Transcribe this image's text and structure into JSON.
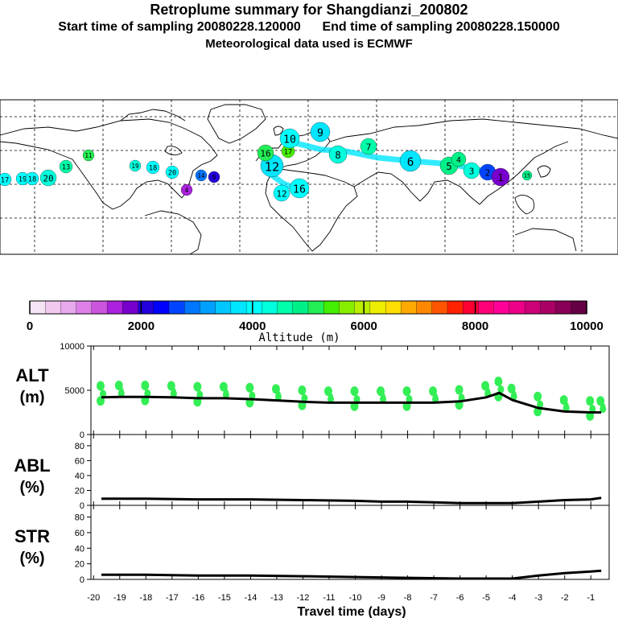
{
  "header": {
    "title": "Retroplume summary for Shangdianzi_200802",
    "sampling_start_label": "Start time of sampling",
    "sampling_start": "20080228.120000",
    "sampling_end_label": "End time of sampling",
    "sampling_end": "20080228.150000",
    "met_data": "Meteorological data used is ECMWF"
  },
  "map": {
    "plume_labels": [
      "17",
      "19",
      "18",
      "20",
      "13",
      "11",
      "19",
      "18",
      "20",
      "14",
      "12",
      "16",
      "12",
      "16",
      "17",
      "10",
      "9",
      "8",
      "7",
      "6",
      "5",
      "4",
      "3",
      "2",
      "1",
      "9",
      "4",
      "15"
    ]
  },
  "colorbar": {
    "title": "Altitude (m)",
    "ticks": [
      "0",
      "2000",
      "4000",
      "6000",
      "8000",
      "10000"
    ],
    "min": 0,
    "max": 10000
  },
  "chart_data": [
    {
      "type": "line",
      "title": "ALT",
      "ylabel": "ALT (m)",
      "ylabel_top": "ALT",
      "ylabel_unit": "(m)",
      "xlabel": "Travel time (days)",
      "ylim": [
        0,
        10000
      ],
      "yticks": [
        "10000",
        "5000",
        "0"
      ],
      "ytick_values": [
        10000,
        5000,
        0
      ],
      "xticks": [
        "-20",
        "-19",
        "-18",
        "-17",
        "-16",
        "-15",
        "-14",
        "-13",
        "-12",
        "-11",
        "-10",
        "-9",
        "-8",
        "-7",
        "-6",
        "-5",
        "-4",
        "-3",
        "-2",
        "-1"
      ],
      "xtick_values": [
        -20,
        -19,
        -18,
        -17,
        -16,
        -15,
        -14,
        -13,
        -12,
        -11,
        -10,
        -9,
        -8,
        -7,
        -6,
        -5,
        -4,
        -3,
        -2,
        -1
      ],
      "xlim": [
        -20.1,
        -0.3
      ],
      "x": [
        -19.7,
        -19,
        -18,
        -17,
        -16,
        -15,
        -14,
        -13,
        -12,
        -11,
        -10,
        -9,
        -8,
        -7,
        -6,
        -5,
        -4.5,
        -4,
        -3,
        -2,
        -1,
        -0.6
      ],
      "y": [
        4200,
        4250,
        4250,
        4200,
        4100,
        4100,
        4000,
        3850,
        3700,
        3600,
        3600,
        3600,
        3600,
        3600,
        3750,
        4200,
        4700,
        3900,
        3000,
        2600,
        2500,
        2500
      ]
    },
    {
      "type": "line",
      "title": "ABL",
      "ylabel": "ABL (%)",
      "ylabel_top": "ABL",
      "ylabel_unit": "(%)",
      "ylim": [
        0,
        95
      ],
      "yticks": [
        "80",
        "60",
        "40",
        "20",
        "0"
      ],
      "ytick_values": [
        80,
        60,
        40,
        20,
        0
      ],
      "x": [
        -19.7,
        -18,
        -16,
        -14,
        -12,
        -10,
        -9,
        -8,
        -7,
        -6,
        -5,
        -4,
        -3,
        -2,
        -1,
        -0.6
      ],
      "y": [
        9,
        9,
        8,
        8,
        7,
        6,
        5,
        5,
        4,
        3,
        3,
        3,
        5,
        7,
        8,
        10
      ]
    },
    {
      "type": "line",
      "title": "STR",
      "ylabel": "STR (%)",
      "ylabel_top": "STR",
      "ylabel_unit": "(%)",
      "ylim": [
        0,
        95
      ],
      "yticks": [
        "80",
        "60",
        "40",
        "20",
        "0"
      ],
      "ytick_values": [
        80,
        60,
        40,
        20,
        0
      ],
      "x": [
        -19.7,
        -18,
        -16,
        -14,
        -12,
        -10,
        -8,
        -6,
        -5,
        -4,
        -3,
        -2,
        -1,
        -0.6
      ],
      "y": [
        6,
        6,
        5,
        5,
        4,
        3,
        2,
        1,
        1,
        1,
        5,
        8,
        10,
        11
      ]
    }
  ]
}
